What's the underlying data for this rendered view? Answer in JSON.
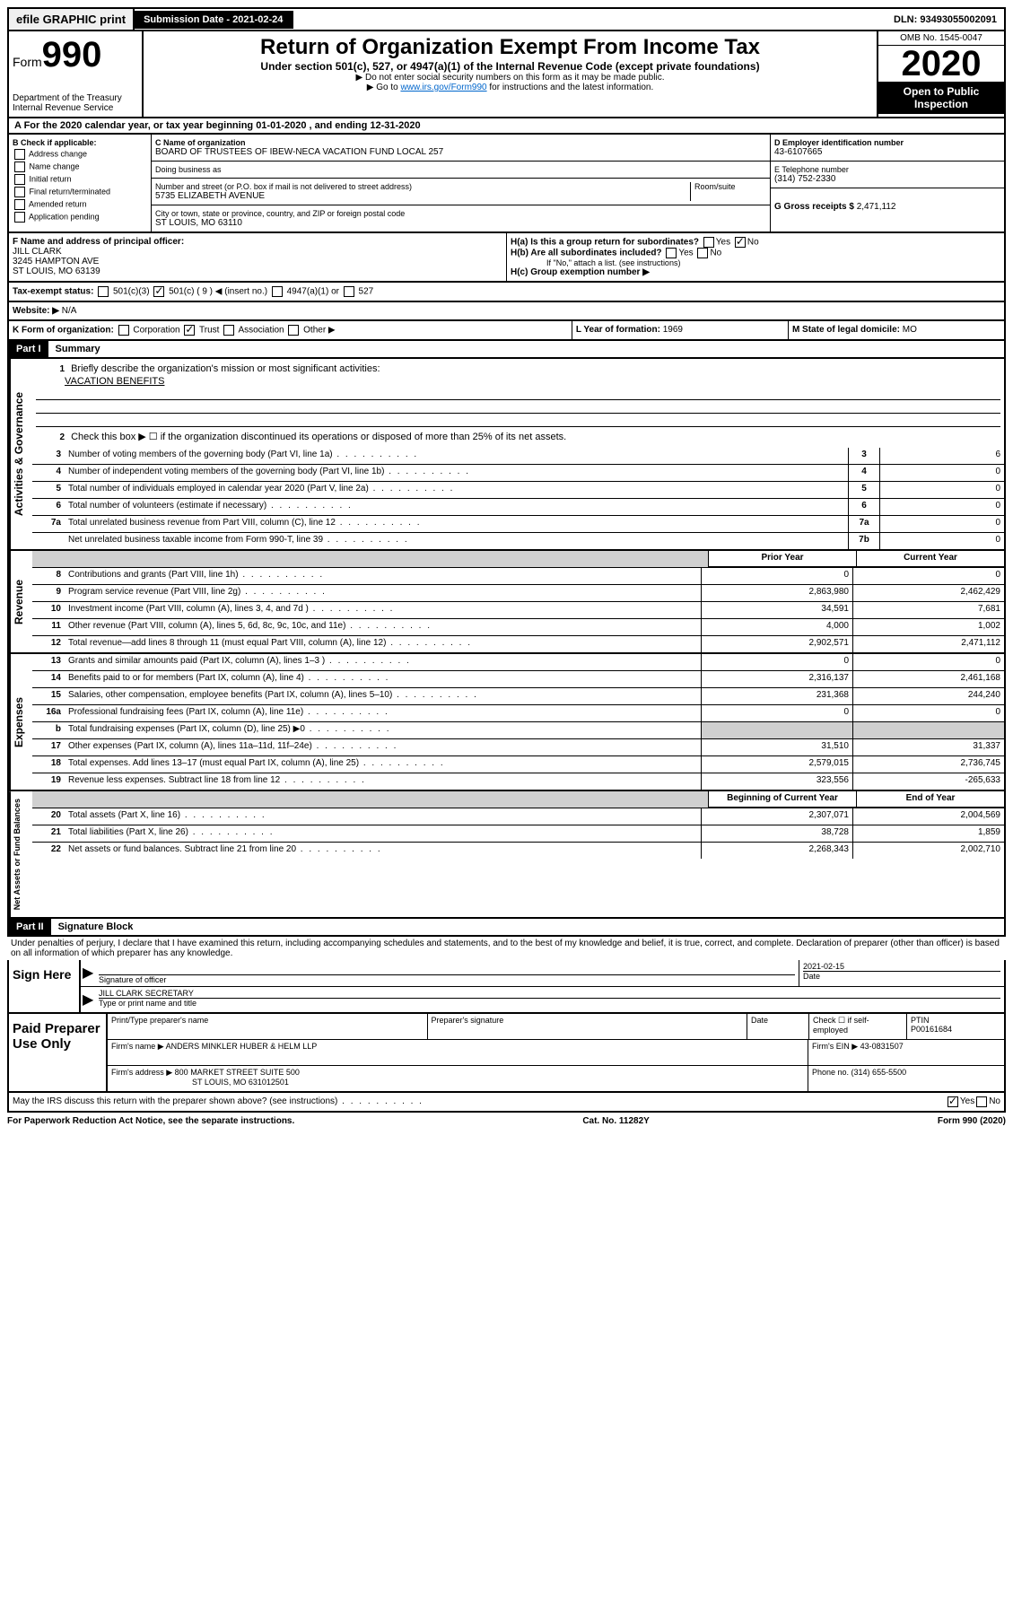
{
  "topbar": {
    "efile": "efile GRAPHIC print",
    "submission_label": "Submission Date - 2021-02-24",
    "dln": "DLN: 93493055002091"
  },
  "header": {
    "form_prefix": "Form",
    "form_number": "990",
    "title": "Return of Organization Exempt From Income Tax",
    "subtitle": "Under section 501(c), 527, or 4947(a)(1) of the Internal Revenue Code (except private foundations)",
    "note1": "▶ Do not enter social security numbers on this form as it may be made public.",
    "note2_pre": "▶ Go to ",
    "note2_link": "www.irs.gov/Form990",
    "note2_post": " for instructions and the latest information.",
    "dept": "Department of the Treasury\nInternal Revenue Service",
    "omb": "OMB No. 1545-0047",
    "year": "2020",
    "open_public": "Open to Public Inspection"
  },
  "sectionA": "A For the 2020 calendar year, or tax year beginning 01-01-2020    , and ending 12-31-2020",
  "colB": {
    "header": "B Check if applicable:",
    "opts": [
      "Address change",
      "Name change",
      "Initial return",
      "Final return/terminated",
      "Amended return",
      "Application pending"
    ]
  },
  "colC": {
    "name_label": "C Name of organization",
    "name": "BOARD OF TRUSTEES OF IBEW-NECA VACATION FUND LOCAL 257",
    "dba_label": "Doing business as",
    "addr_label": "Number and street (or P.O. box if mail is not delivered to street address)",
    "addr": "5735 ELIZABETH AVENUE",
    "room_label": "Room/suite",
    "city_label": "City or town, state or province, country, and ZIP or foreign postal code",
    "city": "ST LOUIS, MO  63110"
  },
  "colD": {
    "ein_label": "D Employer identification number",
    "ein": "43-6107665",
    "phone_label": "E Telephone number",
    "phone": "(314) 752-2330",
    "receipts_label": "G Gross receipts $ ",
    "receipts": "2,471,112"
  },
  "rowF": {
    "label": "F  Name and address of principal officer:",
    "name": "JILL CLARK",
    "addr1": "3245 HAMPTON AVE",
    "addr2": "ST LOUIS, MO  63139"
  },
  "rowH": {
    "ha": "H(a)  Is this a group return for subordinates?",
    "hb": "H(b)  Are all subordinates included?",
    "hb_note": "If \"No,\" attach a list. (see instructions)",
    "hc": "H(c)  Group exemption number ▶",
    "yes": "Yes",
    "no": "No"
  },
  "rowI": {
    "label": "Tax-exempt status:",
    "opts": [
      "501(c)(3)",
      "501(c) ( 9 ) ◀ (insert no.)",
      "4947(a)(1) or",
      "527"
    ]
  },
  "rowJ": {
    "label": "Website: ▶",
    "value": "N/A"
  },
  "rowK": {
    "label": "K Form of organization:",
    "opts": [
      "Corporation",
      "Trust",
      "Association",
      "Other ▶"
    ]
  },
  "rowL": {
    "label": "L Year of formation: ",
    "value": "1969"
  },
  "rowM": {
    "label": "M State of legal domicile:",
    "value": "MO"
  },
  "part1": {
    "header": "Part I",
    "title": "Summary",
    "side_labels": [
      "Activities & Governance",
      "Revenue",
      "Expenses",
      "Net Assets or Fund Balances"
    ],
    "line1_label": "Briefly describe the organization's mission or most significant activities:",
    "line1_value": "VACATION BENEFITS",
    "line2": "Check this box ▶ ☐  if the organization discontinued its operations or disposed of more than 25% of its net assets.",
    "lines_simple": [
      {
        "num": "3",
        "text": "Number of voting members of the governing body (Part VI, line 1a)",
        "box": "3",
        "val": "6"
      },
      {
        "num": "4",
        "text": "Number of independent voting members of the governing body (Part VI, line 1b)",
        "box": "4",
        "val": "0"
      },
      {
        "num": "5",
        "text": "Total number of individuals employed in calendar year 2020 (Part V, line 2a)",
        "box": "5",
        "val": "0"
      },
      {
        "num": "6",
        "text": "Total number of volunteers (estimate if necessary)",
        "box": "6",
        "val": "0"
      },
      {
        "num": "7a",
        "text": "Total unrelated business revenue from Part VIII, column (C), line 12",
        "box": "7a",
        "val": "0"
      },
      {
        "num": "",
        "text": "Net unrelated business taxable income from Form 990-T, line 39",
        "box": "7b",
        "val": "0"
      }
    ],
    "col_headers": [
      "Prior Year",
      "Current Year"
    ],
    "revenue_lines": [
      {
        "num": "8",
        "text": "Contributions and grants (Part VIII, line 1h)",
        "prior": "0",
        "curr": "0"
      },
      {
        "num": "9",
        "text": "Program service revenue (Part VIII, line 2g)",
        "prior": "2,863,980",
        "curr": "2,462,429"
      },
      {
        "num": "10",
        "text": "Investment income (Part VIII, column (A), lines 3, 4, and 7d )",
        "prior": "34,591",
        "curr": "7,681"
      },
      {
        "num": "11",
        "text": "Other revenue (Part VIII, column (A), lines 5, 6d, 8c, 9c, 10c, and 11e)",
        "prior": "4,000",
        "curr": "1,002"
      },
      {
        "num": "12",
        "text": "Total revenue—add lines 8 through 11 (must equal Part VIII, column (A), line 12)",
        "prior": "2,902,571",
        "curr": "2,471,112"
      }
    ],
    "expense_lines": [
      {
        "num": "13",
        "text": "Grants and similar amounts paid (Part IX, column (A), lines 1–3 )",
        "prior": "0",
        "curr": "0"
      },
      {
        "num": "14",
        "text": "Benefits paid to or for members (Part IX, column (A), line 4)",
        "prior": "2,316,137",
        "curr": "2,461,168"
      },
      {
        "num": "15",
        "text": "Salaries, other compensation, employee benefits (Part IX, column (A), lines 5–10)",
        "prior": "231,368",
        "curr": "244,240"
      },
      {
        "num": "16a",
        "text": "Professional fundraising fees (Part IX, column (A), line 11e)",
        "prior": "0",
        "curr": "0"
      },
      {
        "num": "b",
        "text": "Total fundraising expenses (Part IX, column (D), line 25) ▶0",
        "prior": "",
        "curr": "",
        "gray": true
      },
      {
        "num": "17",
        "text": "Other expenses (Part IX, column (A), lines 11a–11d, 11f–24e)",
        "prior": "31,510",
        "curr": "31,337"
      },
      {
        "num": "18",
        "text": "Total expenses. Add lines 13–17 (must equal Part IX, column (A), line 25)",
        "prior": "2,579,015",
        "curr": "2,736,745"
      },
      {
        "num": "19",
        "text": "Revenue less expenses. Subtract line 18 from line 12",
        "prior": "323,556",
        "curr": "-265,633"
      }
    ],
    "net_headers": [
      "Beginning of Current Year",
      "End of Year"
    ],
    "net_lines": [
      {
        "num": "20",
        "text": "Total assets (Part X, line 16)",
        "prior": "2,307,071",
        "curr": "2,004,569"
      },
      {
        "num": "21",
        "text": "Total liabilities (Part X, line 26)",
        "prior": "38,728",
        "curr": "1,859"
      },
      {
        "num": "22",
        "text": "Net assets or fund balances. Subtract line 21 from line 20",
        "prior": "2,268,343",
        "curr": "2,002,710"
      }
    ]
  },
  "part2": {
    "header": "Part II",
    "title": "Signature Block",
    "perjury": "Under penalties of perjury, I declare that I have examined this return, including accompanying schedules and statements, and to the best of my knowledge and belief, it is true, correct, and complete. Declaration of preparer (other than officer) is based on all information of which preparer has any knowledge."
  },
  "sign": {
    "here": "Sign Here",
    "sig_label": "Signature of officer",
    "date_label": "Date",
    "date_value": "2021-02-15",
    "name": "JILL CLARK SECRETARY",
    "name_label": "Type or print name and title"
  },
  "preparer": {
    "header": "Paid Preparer Use Only",
    "print_label": "Print/Type preparer's name",
    "sig_label": "Preparer's signature",
    "date_label": "Date",
    "check_label": "Check ☐ if self-employed",
    "ptin_label": "PTIN",
    "ptin": "P00161684",
    "firm_name_label": "Firm's name    ▶",
    "firm_name": "ANDERS MINKLER HUBER & HELM LLP",
    "firm_ein_label": "Firm's EIN ▶",
    "firm_ein": "43-0831507",
    "firm_addr_label": "Firm's address ▶",
    "firm_addr1": "800 MARKET STREET SUITE 500",
    "firm_addr2": "ST LOUIS, MO  631012501",
    "phone_label": "Phone no. ",
    "phone": "(314) 655-5500"
  },
  "footer": {
    "discuss": "May the IRS discuss this return with the preparer shown above? (see instructions)",
    "yes": "Yes",
    "no": "No",
    "paperwork": "For Paperwork Reduction Act Notice, see the separate instructions.",
    "cat": "Cat. No. 11282Y",
    "form": "Form 990 (2020)"
  }
}
